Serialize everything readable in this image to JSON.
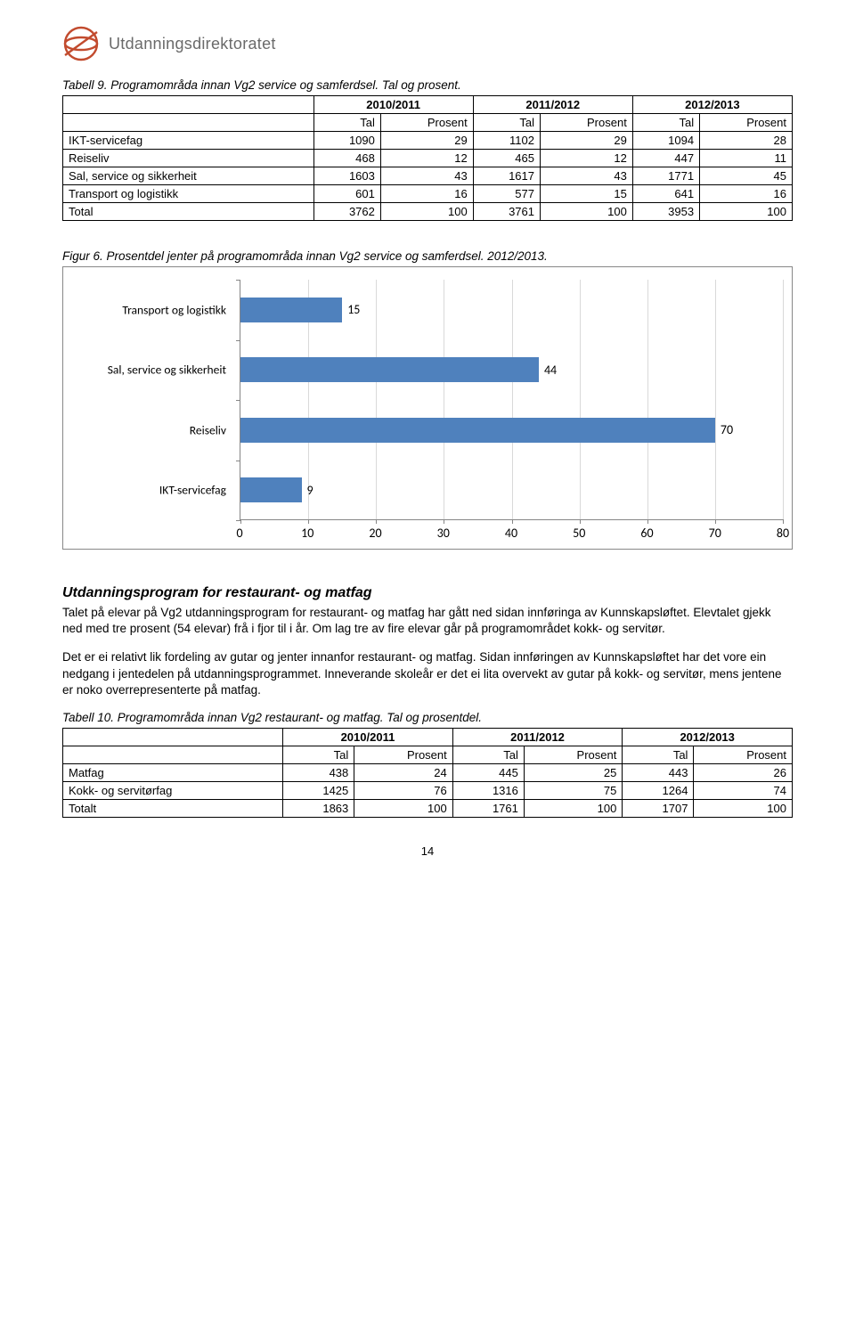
{
  "org_name": "Utdanningsdirektoratet",
  "logo": {
    "stroke": "#c24b2e",
    "fill": "none"
  },
  "table9": {
    "caption": "Tabell 9. Programområda innan Vg2 service og samferdsel. Tal og prosent.",
    "year_headers": [
      "2010/2011",
      "2011/2012",
      "2012/2013"
    ],
    "sub_headers": [
      "Tal",
      "Prosent",
      "Tal",
      "Prosent",
      "Tal",
      "Prosent"
    ],
    "rows": [
      {
        "label": "IKT-servicefag",
        "cells": [
          "1090",
          "29",
          "1102",
          "29",
          "1094",
          "28"
        ]
      },
      {
        "label": "Reiseliv",
        "cells": [
          "468",
          "12",
          "465",
          "12",
          "447",
          "11"
        ]
      },
      {
        "label": "Sal, service og sikkerheit",
        "cells": [
          "1603",
          "43",
          "1617",
          "43",
          "1771",
          "45"
        ]
      },
      {
        "label": "Transport og logistikk",
        "cells": [
          "601",
          "16",
          "577",
          "15",
          "641",
          "16"
        ]
      },
      {
        "label": "Total",
        "cells": [
          "3762",
          "100",
          "3761",
          "100",
          "3953",
          "100"
        ]
      }
    ]
  },
  "figure6": {
    "caption": "Figur 6. Prosentdel jenter på programområda innan Vg2 service og samferdsel. 2012/2013.",
    "type": "bar-horizontal",
    "categories": [
      "Transport og logistikk",
      "Sal, service og sikkerheit",
      "Reiseliv",
      "IKT-servicefag"
    ],
    "values": [
      15,
      44,
      70,
      9
    ],
    "xlim": [
      0,
      80
    ],
    "xtick_step": 10,
    "bar_color": "#4f81bd",
    "grid_color": "#d9d9d9",
    "axis_color": "#868686",
    "label_fontsize": 14,
    "background_color": "#ffffff"
  },
  "section": {
    "title": "Utdanningsprogram for restaurant- og matfag",
    "paragraphs": [
      "Talet på elevar på Vg2 utdanningsprogram for restaurant- og matfag har gått ned sidan innføringa av Kunnskapsløftet. Elevtalet gjekk ned med tre prosent (54 elevar) frå i fjor til i år. Om lag tre av fire elevar går på programområdet kokk- og servitør.",
      "Det er ei relativt lik fordeling av gutar og jenter innanfor restaurant- og matfag. Sidan innføringen av Kunnskapsløftet har det vore ein nedgang i jentedelen på utdanningsprogrammet. Inneverande skoleår er det ei lita overvekt av gutar på kokk- og servitør, mens jentene er noko overrepresenterte på matfag."
    ]
  },
  "table10": {
    "caption": "Tabell 10. Programområda innan Vg2 restaurant- og matfag. Tal og prosentdel.",
    "year_headers": [
      "2010/2011",
      "2011/2012",
      "2012/2013"
    ],
    "sub_headers": [
      "Tal",
      "Prosent",
      "Tal",
      "Prosent",
      "Tal",
      "Prosent"
    ],
    "rows": [
      {
        "label": "Matfag",
        "cells": [
          "438",
          "24",
          "445",
          "25",
          "443",
          "26"
        ]
      },
      {
        "label": "Kokk- og servitørfag",
        "cells": [
          "1425",
          "76",
          "1316",
          "75",
          "1264",
          "74"
        ]
      },
      {
        "label": "Totalt",
        "cells": [
          "1863",
          "100",
          "1761",
          "100",
          "1707",
          "100"
        ]
      }
    ]
  },
  "page_number": "14"
}
